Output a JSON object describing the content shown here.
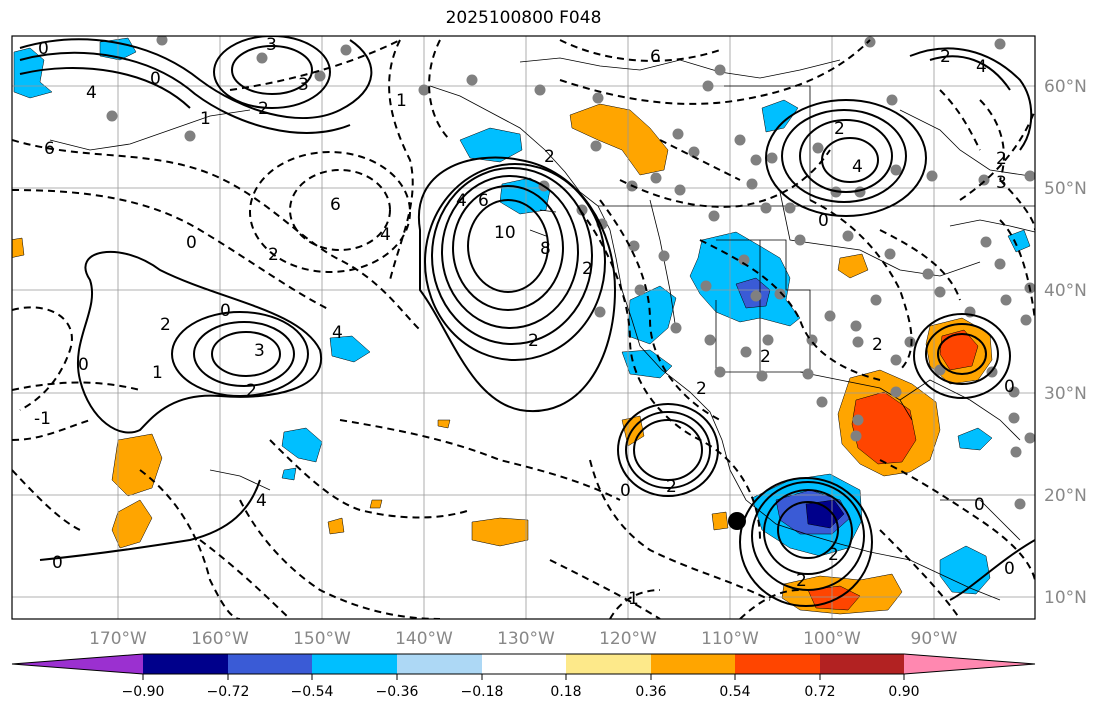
{
  "title": "2025100800 F048",
  "axes": {
    "lon_ticks": [
      "170°W",
      "160°W",
      "150°W",
      "140°W",
      "130°W",
      "120°W",
      "110°W",
      "100°W",
      "90°W"
    ],
    "lat_ticks": [
      "60°N",
      "50°N",
      "40°N",
      "30°N",
      "20°N",
      "10°N"
    ]
  },
  "colorbar": {
    "levels": [
      "−0.90",
      "−0.72",
      "−0.54",
      "−0.36",
      "−0.18",
      "0.18",
      "0.36",
      "0.54",
      "0.72",
      "0.90"
    ],
    "colors": [
      "#9b30d0",
      "#00008b",
      "#3a5bd6",
      "#00bfff",
      "#add8f5",
      "#ffffff",
      "#fde98a",
      "#ffa500",
      "#ff4500",
      "#b22222",
      "#ff88b0"
    ]
  },
  "contour_labels": [
    "0",
    "3",
    "3",
    "0",
    "4",
    "1",
    "2",
    "6",
    "2",
    "1",
    "4",
    "6",
    "0",
    "2",
    "4",
    "10",
    "8",
    "2",
    "6",
    "2",
    "0",
    "3",
    "2",
    "2",
    "1",
    "0",
    "-1",
    "4",
    "4",
    "0",
    "2",
    "0",
    "2",
    "1",
    "2",
    "6",
    "0",
    "2",
    "2",
    "0",
    "4",
    "4",
    "2",
    "3",
    "2",
    "2",
    "0",
    "2",
    "0"
  ],
  "markers": {
    "station_marker": "black-dot"
  }
}
